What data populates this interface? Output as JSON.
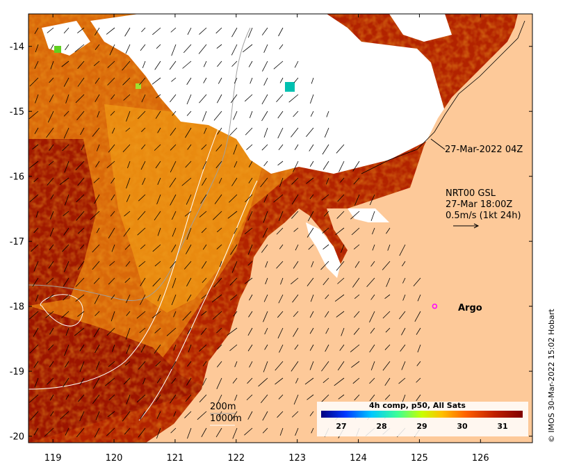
{
  "map": {
    "lon_ticks": [
      "119",
      "120",
      "121",
      "122",
      "123",
      "124",
      "125",
      "126"
    ],
    "lat_ticks": [
      "-14",
      "-15",
      "-16",
      "-17",
      "-18",
      "-19",
      "-20"
    ],
    "lon_range": [
      118.6,
      126.85
    ],
    "lat_range": [
      -20.1,
      -13.5
    ],
    "land_color": "#fdc999",
    "cloud_color": "#ffffff",
    "sst_palette": [
      "#00007e",
      "#0038ff",
      "#00c8ff",
      "#3cff96",
      "#c8ff00",
      "#ffc000",
      "#ff6000",
      "#c02000",
      "#800000"
    ]
  },
  "annotations": {
    "pass_time": "27-Mar-2022 04Z",
    "current_model": "NRT00 GSL",
    "current_time": "27-Mar 18:00Z",
    "vector_scale": "0.5m/s (1kt 24h)"
  },
  "argo": {
    "label": "Argo",
    "lon": 125.25,
    "lat": -18.0,
    "marker_color": "#ff00ff"
  },
  "bathymetry": {
    "contour_200": "200m",
    "contour_1000": "1000m"
  },
  "colorbar": {
    "title": "4h comp, p50, All Sats",
    "ticks": [
      "27",
      "28",
      "29",
      "30",
      "31"
    ],
    "range": [
      26.5,
      31.5
    ]
  },
  "credit": "© IMOS 30-Mar-2022 15:02 Hobart"
}
